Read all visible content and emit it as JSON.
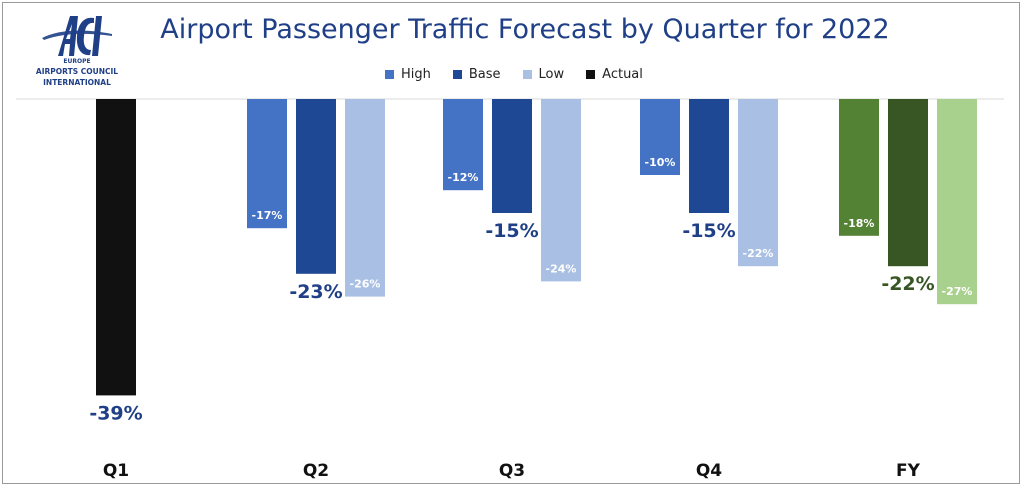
{
  "logo": {
    "mark": "ACI",
    "region": "EUROPE",
    "line1": "AIRPORTS COUNCIL",
    "line2": "INTERNATIONAL"
  },
  "chart_data": {
    "type": "bar",
    "title": "Airport Passenger Traffic Forecast by Quarter for 2022",
    "legend": [
      "High",
      "Base",
      "Low",
      "Actual"
    ],
    "legend_placement": "top-center",
    "ylim": [
      -43,
      0
    ],
    "grid": false,
    "groups": [
      {
        "category": "Q1",
        "bars": [
          {
            "series": "Actual",
            "value": -39,
            "label": "-39%",
            "color": "#111111"
          }
        ]
      },
      {
        "category": "Q2",
        "bars": [
          {
            "series": "High",
            "value": -17,
            "label": "-17%",
            "color": "#4472c4"
          },
          {
            "series": "Base",
            "value": -23,
            "label": "-23%",
            "color": "#1f4894"
          },
          {
            "series": "Low",
            "value": -26,
            "label": "-26%",
            "color": "#a9bfe3"
          }
        ]
      },
      {
        "category": "Q3",
        "bars": [
          {
            "series": "High",
            "value": -12,
            "label": "-12%",
            "color": "#4472c4"
          },
          {
            "series": "Base",
            "value": -15,
            "label": "-15%",
            "color": "#1f4894"
          },
          {
            "series": "Low",
            "value": -24,
            "label": "-24%",
            "color": "#a9bfe3"
          }
        ]
      },
      {
        "category": "Q4",
        "bars": [
          {
            "series": "High",
            "value": -10,
            "label": "-10%",
            "color": "#4472c4"
          },
          {
            "series": "Base",
            "value": -15,
            "label": "-15%",
            "color": "#1f4894"
          },
          {
            "series": "Low",
            "value": -22,
            "label": "-22%",
            "color": "#a9bfe3"
          }
        ]
      },
      {
        "category": "FY",
        "bars": [
          {
            "series": "High",
            "value": -18,
            "label": "-18%",
            "color": "#548235"
          },
          {
            "series": "Base",
            "value": -22,
            "label": "-22%",
            "color": "#375623"
          },
          {
            "series": "Low",
            "value": -27,
            "label": "-27%",
            "color": "#a9d18e"
          }
        ]
      }
    ]
  },
  "colors": {
    "title": "#1f3f86",
    "high": "#4472c4",
    "base": "#1f4894",
    "low": "#a9bfe3",
    "actual": "#111111",
    "base_label_blue": "#1f3f86",
    "base_label_green": "#375623"
  }
}
